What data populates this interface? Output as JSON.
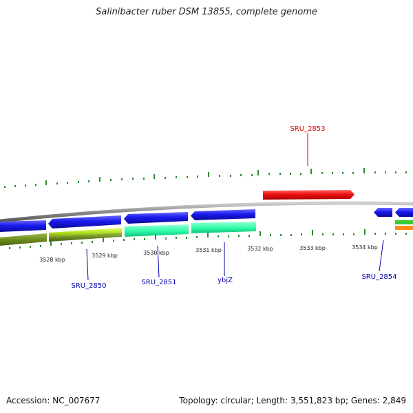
{
  "title": "Salinibacter ruber DSM 13855, complete genome",
  "footer": {
    "accession": "Accession: NC_007677",
    "summary": "Topology: circular; Length: 3,551,823 bp; Genes: 2,849"
  },
  "scale_labels": [
    "3528 kbp",
    "3529 kbp",
    "3530 kbp",
    "3531 kbp",
    "3532 kbp",
    "3533 kbp",
    "3534 kbp"
  ],
  "gene_labels": [
    {
      "name": "SRU_2853",
      "color": "#e00000"
    },
    {
      "name": "SRU_2850",
      "color": "#0000b0"
    },
    {
      "name": "SRU_2851",
      "color": "#0000b0"
    },
    {
      "name": "ybjZ",
      "color": "#0000b0"
    },
    {
      "name": "SRU_2854",
      "color": "#0000b0"
    }
  ],
  "colors": {
    "forward_gene": "#ee1111",
    "reverse_gene": "#1a1aee",
    "backbone": "#8c8c8c",
    "tick": "#2e8b2e",
    "olive": "#6f8f1f",
    "lime": "#b5e61d",
    "aqua": "#33ffaa",
    "orange": "#ff8c1a",
    "green": "#33cc33"
  }
}
